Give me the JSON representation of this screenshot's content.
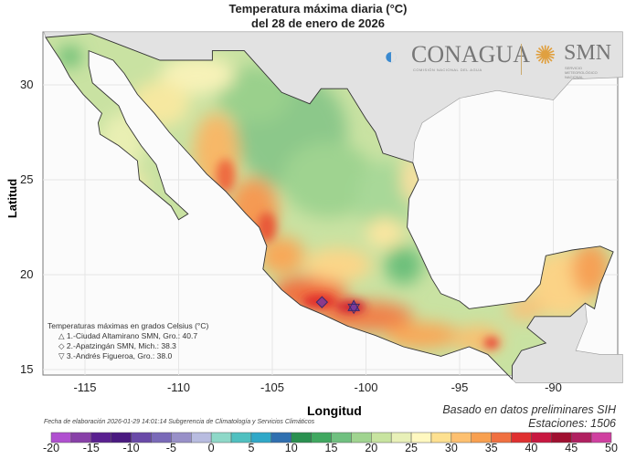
{
  "title": {
    "line1": "Temperatura máxima diaria (°C)",
    "line2": "del 28 de enero de 2026"
  },
  "axes": {
    "xlabel": "Longitud",
    "ylabel": "Latitud",
    "xticks": [
      "-115",
      "-110",
      "-105",
      "-100",
      "-95",
      "-90"
    ],
    "yticks": [
      "30",
      "25",
      "20",
      "15"
    ],
    "lon_range": [
      -117.2,
      -86.3
    ],
    "lat_range": [
      14.3,
      32.8
    ],
    "grid": true
  },
  "logos": {
    "conagua": "CONAGUA",
    "conagua_sub": "COMISIÓN NACIONAL DEL AGUA",
    "smn": "SMN",
    "smn_sub": "SERVICIO METEOROLÓGICO NACIONAL"
  },
  "legend": {
    "title": "Temperaturas máximas en grados Celsius (°C)",
    "items": [
      {
        "symbol": "triangle-up",
        "text": "1.-Ciudad Altamirano SMN, Gro.: 40.7"
      },
      {
        "symbol": "diamond",
        "text": "2.-Apatzingán SMN, Mich.: 38.3"
      },
      {
        "symbol": "triangle-down",
        "text": "3.-Andrés Figueroa, Gro.: 38.0"
      }
    ]
  },
  "source": "Basado en datos preliminares SIH",
  "stations": "Estaciones:  1506",
  "footer": "Fecha de elaboración 2026-01-29 14:01:14 Subgerencia de Climatología y Servicios Climáticos",
  "colorbar": {
    "min": -20,
    "max": 50,
    "step": 2.5,
    "labels": [
      "-20",
      "-15",
      "-10",
      "-5",
      "0",
      "5",
      "10",
      "15",
      "20",
      "25",
      "30",
      "35",
      "40",
      "45",
      "50"
    ],
    "colors": [
      "#b050d0",
      "#8840a8",
      "#5a2090",
      "#4a1a80",
      "#6a4aa8",
      "#7a6ab8",
      "#9890c8",
      "#b8bce0",
      "#8ed8c8",
      "#50c0c0",
      "#30a8c8",
      "#3070b0",
      "#2a9050",
      "#40a860",
      "#70c080",
      "#a0d490",
      "#c8e4a0",
      "#e8f0b8",
      "#fff8c0",
      "#fde090",
      "#fdc070",
      "#f8a050",
      "#f07040",
      "#e03030",
      "#c81840",
      "#a01030",
      "#b02060",
      "#d040a0"
    ]
  }
}
